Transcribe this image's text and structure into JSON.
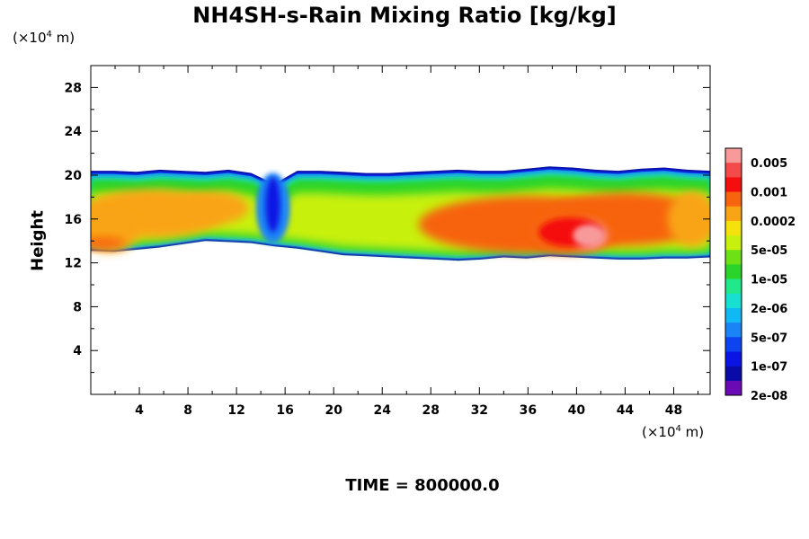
{
  "chart_data": {
    "type": "heatmap",
    "title": "NH4SH-s-Rain Mixing Ratio [kg/kg]",
    "xlabel": "",
    "ylabel": "Height",
    "x_unit": "(×10^4 m)",
    "y_unit": "(×10^4 m)",
    "x_unit_prefix": "(×10",
    "x_unit_exp": "4",
    "x_unit_suffix": " m)",
    "y_unit_prefix": "(×10",
    "y_unit_exp": "4",
    "y_unit_suffix": " m)",
    "xlim": [
      0,
      51
    ],
    "ylim": [
      0,
      30
    ],
    "xticks": [
      4,
      8,
      12,
      16,
      20,
      24,
      28,
      32,
      36,
      40,
      44,
      48
    ],
    "yticks": [
      4,
      8,
      12,
      16,
      20,
      24,
      28
    ],
    "colorbar": {
      "labels": [
        "0.005",
        "0.001",
        "0.0002",
        "5e-05",
        "1e-05",
        "2e-06",
        "5e-07",
        "1e-07",
        "2e-08"
      ],
      "colors": [
        "#f89a9a",
        "#f54a4a",
        "#f50e0e",
        "#f76410",
        "#f9a414",
        "#f5e20c",
        "#c8f00e",
        "#6ee016",
        "#2bd42a",
        "#22e88c",
        "#18e0d0",
        "#10b8f4",
        "#1a84f6",
        "#0e44f0",
        "#0a14e4",
        "#0a0aa8",
        "#6a0ab4"
      ]
    },
    "layer": {
      "top_height": [
        20.4,
        20.4,
        20.3,
        20.5,
        20.4,
        20.3,
        20.5,
        20.2,
        19.2,
        20.4,
        20.4,
        20.3,
        20.2,
        20.2,
        20.3,
        20.4,
        20.5,
        20.4,
        20.4,
        20.6,
        20.8,
        20.7,
        20.5,
        20.4,
        20.6,
        20.7,
        20.5,
        20.4
      ],
      "bottom_height": [
        13.1,
        13.0,
        13.2,
        13.4,
        13.7,
        14.0,
        13.9,
        13.8,
        13.5,
        13.3,
        13.0,
        12.7,
        12.6,
        12.5,
        12.4,
        12.3,
        12.2,
        12.3,
        12.5,
        12.4,
        12.6,
        12.5,
        12.4,
        12.3,
        12.3,
        12.4,
        12.4,
        12.5
      ],
      "core_regions": [
        {
          "x": 5.0,
          "y": 16.5,
          "rx": 6.0,
          "ry": 2.2,
          "value": 0.0002
        },
        {
          "x": 1.5,
          "y": 15.0,
          "rx": 2.5,
          "ry": 2.0,
          "value": 0.0002
        },
        {
          "x": 1.0,
          "y": 13.8,
          "rx": 1.8,
          "ry": 0.5,
          "value": 0.001
        },
        {
          "x": 10.0,
          "y": 17.0,
          "rx": 3.0,
          "ry": 1.5,
          "value": 0.0002
        },
        {
          "x": 36.0,
          "y": 15.5,
          "rx": 9.0,
          "ry": 2.6,
          "value": 0.001
        },
        {
          "x": 44.0,
          "y": 16.0,
          "rx": 7.0,
          "ry": 2.4,
          "value": 0.001
        },
        {
          "x": 39.5,
          "y": 14.8,
          "rx": 3.5,
          "ry": 1.9,
          "value": 0.001
        },
        {
          "x": 41.0,
          "y": 14.5,
          "rx": 1.5,
          "ry": 1.2,
          "value": 0.005
        },
        {
          "x": 49.5,
          "y": 16.0,
          "rx": 2.0,
          "ry": 2.5,
          "value": 0.0002
        }
      ]
    }
  },
  "footer": {
    "time_label": "TIME = 800000.0"
  }
}
